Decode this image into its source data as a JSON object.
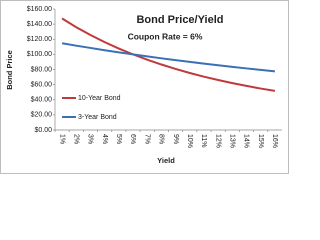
{
  "chart_data": {
    "type": "line",
    "title": "Bond Price/Yield",
    "subtitle": "Coupon Rate = 6%",
    "x_label": "Yield",
    "y_label": "Bond Price",
    "categories": [
      "1%",
      "2%",
      "3%",
      "4%",
      "5%",
      "6%",
      "7%",
      "8%",
      "9%",
      "10%",
      "11%",
      "12%",
      "13%",
      "14%",
      "15%",
      "16%"
    ],
    "series": [
      {
        "name": "10-Year Bond",
        "color": "#c0393b",
        "values": [
          147.4,
          135.9,
          125.6,
          116.2,
          107.7,
          100.0,
          93.0,
          86.6,
          80.7,
          75.4,
          70.5,
          66.1,
          62.0,
          58.3,
          54.8,
          51.7
        ]
      },
      {
        "name": "3-Year Bond",
        "color": "#3b6fb6",
        "values": [
          114.7,
          111.5,
          108.5,
          105.5,
          102.7,
          100.0,
          97.4,
          94.8,
          92.4,
          90.1,
          87.8,
          85.6,
          83.5,
          81.4,
          79.5,
          77.5
        ]
      }
    ],
    "ylim": [
      0,
      160
    ],
    "yticks": [
      {
        "value": 0,
        "label": "$0.00"
      },
      {
        "value": 20,
        "label": "$20.00"
      },
      {
        "value": 40,
        "label": "$40.00"
      },
      {
        "value": 60,
        "label": "$60.00"
      },
      {
        "value": 80,
        "label": "$80.00"
      },
      {
        "value": 100,
        "label": "$100.00"
      },
      {
        "value": 120,
        "label": "$120.00"
      },
      {
        "value": 140,
        "label": "$140.00"
      },
      {
        "value": 160,
        "label": "$160.00"
      }
    ],
    "grid": false,
    "legend": "bottom-left"
  }
}
